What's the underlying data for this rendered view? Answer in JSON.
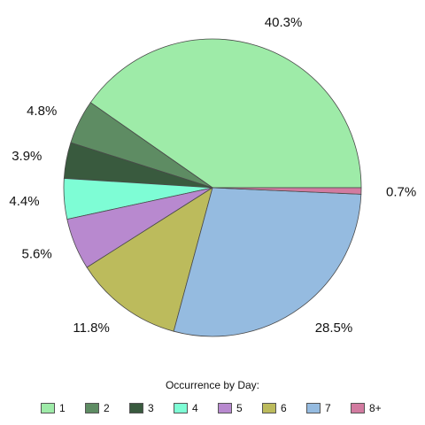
{
  "chart_data": {
    "type": "pie",
    "legend_title": "Occurrence by Day:",
    "legend_placement": "bottom",
    "start_angle_deg": 0,
    "direction": "counterclockwise",
    "slices": [
      {
        "label": "1",
        "value": 40.3,
        "label_text": "40.3%",
        "color": "#9EEBA8"
      },
      {
        "label": "2",
        "value": 4.8,
        "label_text": "4.8%",
        "color": "#5E8C63"
      },
      {
        "label": "3",
        "value": 3.9,
        "label_text": "3.9%",
        "color": "#395A3E"
      },
      {
        "label": "4",
        "value": 4.4,
        "label_text": "4.4%",
        "color": "#7EFDD5"
      },
      {
        "label": "5",
        "value": 5.6,
        "label_text": "5.6%",
        "color": "#B889CF"
      },
      {
        "label": "6",
        "value": 11.8,
        "label_text": "11.8%",
        "color": "#BCBB5C"
      },
      {
        "label": "7",
        "value": 28.5,
        "label_text": "28.5%",
        "color": "#95BBE0"
      },
      {
        "label": "8+",
        "value": 0.7,
        "label_text": "0.7%",
        "color": "#D27BA0"
      }
    ]
  }
}
